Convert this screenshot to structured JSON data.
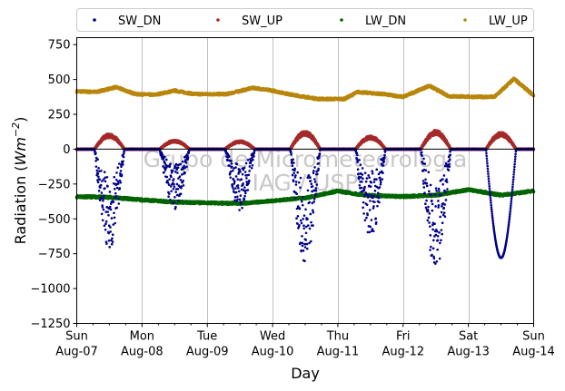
{
  "chart_data": {
    "type": "scatter",
    "title": "",
    "xlabel": "Day",
    "ylabel": "Radiation (Wm⁻²)",
    "ylim": [
      -1250,
      800
    ],
    "yticks": [
      -1250,
      -1000,
      -750,
      -500,
      -250,
      0,
      250,
      500,
      750
    ],
    "xlim": [
      "2016-08-07",
      "2016-08-14"
    ],
    "xticks": [
      {
        "day": "Sun",
        "date": "Aug-07"
      },
      {
        "day": "Mon",
        "date": "Aug-08"
      },
      {
        "day": "Tue",
        "date": "Aug-09"
      },
      {
        "day": "Wed",
        "date": "Aug-10"
      },
      {
        "day": "Thu",
        "date": "Aug-11"
      },
      {
        "day": "Fri",
        "date": "Aug-12"
      },
      {
        "day": "Sat",
        "date": "Aug-13"
      },
      {
        "day": "Sun",
        "date": "Aug-14"
      }
    ],
    "grid": "vertical",
    "legend_position": "top",
    "watermark": [
      "Grupo de Micrometeorologia",
      "IAG / USP"
    ],
    "series": [
      {
        "name": "SW_DN",
        "color": "#00008b",
        "daily_min": [
          -730,
          -430,
          -450,
          -810,
          -640,
          -870,
          -780
        ]
      },
      {
        "name": "SW_UP",
        "color": "#a52a2a",
        "daily_max": [
          110,
          65,
          60,
          130,
          95,
          135,
          120
        ]
      },
      {
        "name": "LW_DN",
        "color": "#006400",
        "x": [
          0,
          0.5,
          0.9,
          1.5,
          2.5,
          3.0,
          3.5,
          4.0,
          4.4,
          5.0,
          5.5,
          6.0,
          6.5,
          7.0
        ],
        "y": [
          -340,
          -345,
          -360,
          -380,
          -390,
          -370,
          -350,
          -300,
          -330,
          -340,
          -330,
          -290,
          -330,
          -300
        ]
      },
      {
        "name": "LW_UP",
        "color": "#b8860b",
        "x": [
          0,
          0.3,
          0.6,
          0.9,
          1.2,
          1.5,
          1.8,
          2.3,
          2.7,
          3.0,
          3.3,
          3.7,
          4.1,
          4.3,
          4.7,
          5.0,
          5.4,
          5.7,
          6.1,
          6.4,
          6.7,
          7.0
        ],
        "y": [
          415,
          410,
          445,
          395,
          390,
          420,
          395,
          395,
          440,
          420,
          390,
          360,
          360,
          410,
          395,
          375,
          455,
          380,
          375,
          375,
          505,
          385
        ]
      }
    ]
  }
}
